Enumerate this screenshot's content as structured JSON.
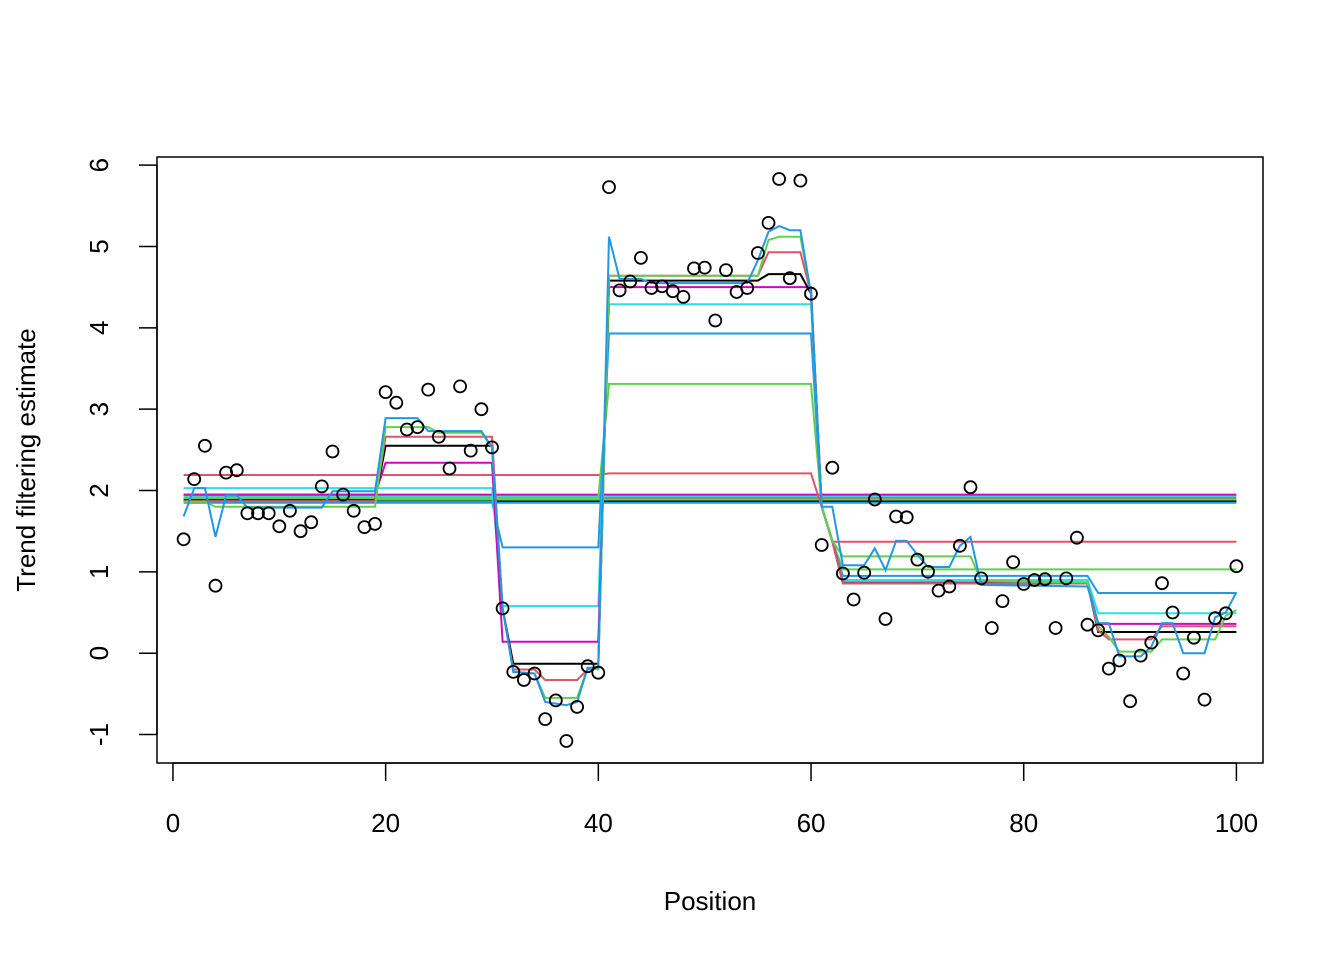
{
  "chart_data": {
    "type": "line",
    "title": "",
    "xlabel": "Position",
    "ylabel": "Trend filtering estimate",
    "xlim": [
      -1.5,
      102.5
    ],
    "ylim": [
      -1.35,
      6.1
    ],
    "xticks": [
      0,
      20,
      40,
      60,
      80,
      100
    ],
    "yticks": [
      -1,
      0,
      1,
      2,
      3,
      4,
      5,
      6
    ],
    "grid": false,
    "legend": "none",
    "points": {
      "x": [
        1,
        2,
        3,
        4,
        5,
        6,
        7,
        8,
        9,
        10,
        11,
        12,
        13,
        14,
        15,
        16,
        17,
        18,
        19,
        20,
        21,
        22,
        23,
        24,
        25,
        26,
        27,
        28,
        29,
        30,
        31,
        32,
        33,
        34,
        35,
        36,
        37,
        38,
        39,
        40,
        41,
        42,
        43,
        44,
        45,
        46,
        47,
        48,
        49,
        50,
        51,
        52,
        53,
        54,
        55,
        56,
        57,
        58,
        59,
        60,
        61,
        62,
        63,
        64,
        65,
        66,
        67,
        68,
        69,
        70,
        71,
        72,
        73,
        74,
        75,
        76,
        77,
        78,
        79,
        80,
        81,
        82,
        83,
        84,
        85,
        86,
        87,
        88,
        89,
        90,
        91,
        92,
        93,
        94,
        95,
        96,
        97,
        98,
        99,
        100
      ],
      "y": [
        1.4,
        2.14,
        2.55,
        0.83,
        2.22,
        2.25,
        1.72,
        1.72,
        1.72,
        1.56,
        1.75,
        1.5,
        1.61,
        2.05,
        2.48,
        1.95,
        1.75,
        1.55,
        1.59,
        3.21,
        3.08,
        2.75,
        2.78,
        3.24,
        2.66,
        2.27,
        3.28,
        2.49,
        3.0,
        2.53,
        0.55,
        -0.23,
        -0.33,
        -0.25,
        -0.81,
        -0.58,
        -1.08,
        -0.66,
        -0.16,
        -0.24,
        5.73,
        4.46,
        4.57,
        4.86,
        4.49,
        4.51,
        4.45,
        4.38,
        4.73,
        4.74,
        4.09,
        4.71,
        4.44,
        4.49,
        4.92,
        5.29,
        5.83,
        4.61,
        5.81,
        4.42,
        1.33,
        2.28,
        0.98,
        0.66,
        0.99,
        1.89,
        0.42,
        1.68,
        1.67,
        1.15,
        1.0,
        0.77,
        0.82,
        1.32,
        2.04,
        0.92,
        0.31,
        0.64,
        1.12,
        0.85,
        0.9,
        0.91,
        0.31,
        0.92,
        1.42,
        0.35,
        0.28,
        -0.19,
        -0.09,
        -0.59,
        -0.03,
        0.13,
        0.86,
        0.5,
        -0.25,
        0.19,
        -0.57,
        0.43,
        0.49,
        1.07
      ]
    },
    "series": [
      {
        "name": "",
        "color": "#000000",
        "x": [
          1,
          100
        ],
        "y": [
          1.87,
          1.87
        ]
      },
      {
        "name": "",
        "color": "#DF536B",
        "x": [
          1,
          100
        ],
        "y": [
          1.91,
          1.91
        ]
      },
      {
        "name": "",
        "color": "#61D04F",
        "x": [
          1,
          100
        ],
        "y": [
          1.89,
          1.89
        ]
      },
      {
        "name": "",
        "color": "#2297E6",
        "x": [
          1,
          100
        ],
        "y": [
          1.85,
          1.85
        ]
      },
      {
        "name": "",
        "color": "#28E2E5",
        "x": [
          1,
          100
        ],
        "y": [
          1.93,
          1.93
        ]
      },
      {
        "name": "",
        "color": "#CD0BBC",
        "x": [
          1,
          100
        ],
        "y": [
          1.95,
          1.95
        ]
      },
      {
        "name": "",
        "color": "#DF536B",
        "x": [
          1,
          40,
          41,
          60,
          61,
          62,
          100
        ],
        "y": [
          2.19,
          2.19,
          2.21,
          2.21,
          1.8,
          1.37,
          1.37
        ]
      },
      {
        "name": "",
        "color": "#61D04F",
        "x": [
          1,
          19,
          20,
          30,
          31,
          40,
          41,
          60,
          61,
          62,
          63,
          100
        ],
        "y": [
          1.91,
          1.91,
          1.91,
          1.91,
          1.91,
          1.91,
          3.31,
          3.31,
          1.8,
          1.38,
          1.03,
          1.03
        ]
      },
      {
        "name": "",
        "color": "#2297E6",
        "x": [
          1,
          19,
          20,
          30,
          31,
          40,
          41,
          60,
          61,
          62,
          63,
          86,
          87,
          100
        ],
        "y": [
          1.86,
          1.86,
          1.86,
          1.86,
          1.3,
          1.3,
          3.93,
          3.93,
          1.8,
          1.38,
          0.95,
          0.95,
          0.74,
          0.74
        ]
      },
      {
        "name": "",
        "color": "#28E2E5",
        "x": [
          1,
          19,
          20,
          30,
          31,
          40,
          41,
          60,
          61,
          62,
          63,
          86,
          87,
          100
        ],
        "y": [
          2.03,
          2.03,
          2.03,
          2.03,
          0.58,
          0.58,
          4.29,
          4.29,
          1.8,
          1.38,
          0.9,
          0.9,
          0.49,
          0.49
        ]
      },
      {
        "name": "",
        "color": "#CD0BBC",
        "x": [
          1,
          19,
          20,
          30,
          31,
          40,
          41,
          60,
          61,
          62,
          63,
          86,
          87,
          100
        ],
        "y": [
          1.95,
          1.95,
          2.34,
          2.34,
          0.14,
          0.14,
          4.5,
          4.5,
          1.8,
          1.38,
          0.87,
          0.87,
          0.36,
          0.36
        ]
      },
      {
        "name": "",
        "color": "#000000",
        "x": [
          1,
          19,
          20,
          21,
          30,
          31,
          32,
          40,
          41,
          55,
          56,
          59,
          60,
          61,
          62,
          63,
          86,
          87,
          100
        ],
        "y": [
          1.88,
          1.88,
          2.55,
          2.55,
          2.55,
          0.55,
          -0.13,
          -0.13,
          4.58,
          4.58,
          4.66,
          4.66,
          4.42,
          1.8,
          1.38,
          0.86,
          0.86,
          0.26,
          0.26
        ]
      },
      {
        "name": "",
        "color": "#DF536B",
        "x": [
          1,
          19,
          20,
          21,
          30,
          31,
          32,
          34,
          35,
          38,
          39,
          40,
          41,
          55,
          56,
          59,
          60,
          61,
          62,
          63,
          86,
          87,
          88,
          92,
          93,
          100
        ],
        "y": [
          1.87,
          1.87,
          2.66,
          2.66,
          2.66,
          0.55,
          -0.2,
          -0.2,
          -0.33,
          -0.33,
          -0.2,
          -0.18,
          4.64,
          4.64,
          4.93,
          4.93,
          4.42,
          1.8,
          1.38,
          0.86,
          0.86,
          0.28,
          0.17,
          0.17,
          0.33,
          0.33
        ]
      },
      {
        "name": "",
        "color": "#61D04F",
        "x": [
          1,
          3,
          4,
          19,
          20,
          21,
          22,
          24,
          25,
          29,
          30,
          31,
          32,
          34,
          35,
          38,
          39,
          40,
          41,
          55,
          56,
          57,
          59,
          60,
          61,
          62,
          63,
          75,
          76,
          86,
          87,
          88,
          89,
          92,
          93,
          98,
          99,
          100
        ],
        "y": [
          1.86,
          1.86,
          1.8,
          1.8,
          2.78,
          2.78,
          2.78,
          2.78,
          2.71,
          2.71,
          2.53,
          0.55,
          -0.23,
          -0.25,
          -0.55,
          -0.55,
          -0.18,
          -0.2,
          4.64,
          4.64,
          5.08,
          5.12,
          5.12,
          4.42,
          1.8,
          1.38,
          1.19,
          1.19,
          0.89,
          0.87,
          0.33,
          0.2,
          0.02,
          0.02,
          0.17,
          0.17,
          0.46,
          0.53
        ]
      },
      {
        "name": "",
        "color": "#2297E6",
        "x": [
          1,
          2,
          3,
          4,
          5,
          6,
          7,
          14,
          15,
          19,
          20,
          21,
          23,
          24,
          29,
          30,
          31,
          32,
          34,
          35,
          37,
          38,
          39,
          40,
          41,
          42,
          44,
          45,
          54,
          55,
          56,
          57,
          58,
          59,
          60,
          61,
          62,
          63,
          65,
          66,
          67,
          68,
          69,
          70,
          71,
          73,
          74,
          75,
          76,
          86,
          87,
          88,
          89,
          90,
          91,
          92,
          93,
          94,
          95,
          96,
          97,
          98,
          99,
          100
        ],
        "y": [
          1.68,
          2.03,
          2.03,
          1.43,
          1.94,
          1.94,
          1.79,
          1.79,
          1.99,
          1.99,
          2.89,
          2.89,
          2.89,
          2.73,
          2.73,
          2.53,
          0.55,
          -0.23,
          -0.25,
          -0.6,
          -0.64,
          -0.6,
          -0.18,
          -0.18,
          5.12,
          4.6,
          4.6,
          4.55,
          4.55,
          4.83,
          5.18,
          5.25,
          5.2,
          5.2,
          4.42,
          1.8,
          1.8,
          1.08,
          1.08,
          1.29,
          1.02,
          1.38,
          1.38,
          1.21,
          1.06,
          1.06,
          1.32,
          1.43,
          0.84,
          0.82,
          0.37,
          0.37,
          -0.04,
          -0.04,
          -0.04,
          0.08,
          0.37,
          0.37,
          0.0,
          0.0,
          0.0,
          0.44,
          0.5,
          0.75
        ]
      }
    ]
  }
}
